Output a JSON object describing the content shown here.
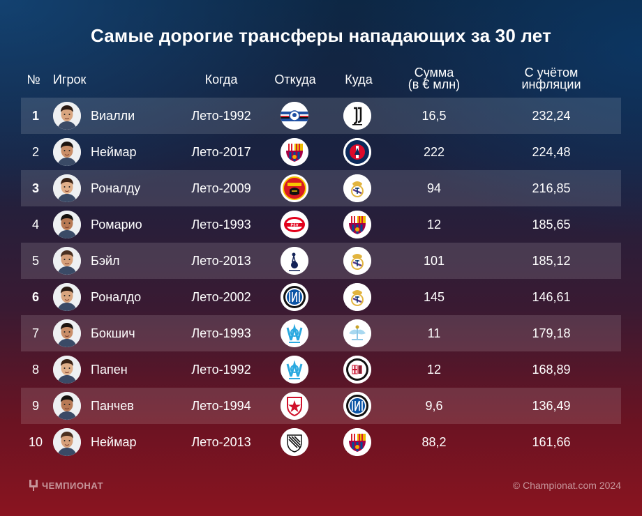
{
  "title": "Самые дорогие трансферы нападающих за 30 лет",
  "headers": {
    "num": "№",
    "player": "Игрок",
    "when": "Когда",
    "from": "Откуда",
    "to": "Куда",
    "sum_line1": "Сумма",
    "sum_line2": "(в € млн)",
    "infl_line1": "С учётом",
    "infl_line2": "инфляции"
  },
  "rows": [
    {
      "num": "1",
      "bold": true,
      "name": "Виалли",
      "when": "Лето-1992",
      "from": "sampdoria-logo",
      "to": "juventus-logo",
      "sum": "16,5",
      "infl": "232,24"
    },
    {
      "num": "2",
      "bold": false,
      "name": "Неймар",
      "when": "Лето-2017",
      "from": "barcelona-logo",
      "to": "psg-logo",
      "sum": "222",
      "infl": "224,48"
    },
    {
      "num": "3",
      "bold": true,
      "name": "Роналду",
      "when": "Лето-2009",
      "from": "manchester-united-logo",
      "to": "real-madrid-logo",
      "sum": "94",
      "infl": "216,85"
    },
    {
      "num": "4",
      "bold": false,
      "name": "Ромарио",
      "when": "Лето-1993",
      "from": "psv-logo",
      "to": "barcelona-logo",
      "sum": "12",
      "infl": "185,65"
    },
    {
      "num": "5",
      "bold": false,
      "name": "Бэйл",
      "when": "Лето-2013",
      "from": "tottenham-logo",
      "to": "real-madrid-logo",
      "sum": "101",
      "infl": "185,12"
    },
    {
      "num": "6",
      "bold": true,
      "name": "Роналдо",
      "when": "Лето-2002",
      "from": "inter-logo",
      "to": "real-madrid-logo",
      "sum": "145",
      "infl": "146,61"
    },
    {
      "num": "7",
      "bold": false,
      "name": "Бокшич",
      "when": "Лето-1993",
      "from": "marseille-logo",
      "to": "lazio-logo",
      "sum": "11",
      "infl": "179,18"
    },
    {
      "num": "8",
      "bold": false,
      "name": "Папен",
      "when": "Лето-1992",
      "from": "marseille-logo",
      "to": "milan-logo",
      "sum": "12",
      "infl": "168,89"
    },
    {
      "num": "9",
      "bold": false,
      "name": "Панчев",
      "when": "Лето-1994",
      "from": "crvena-zvezda-logo",
      "to": "inter-logo",
      "sum": "9,6",
      "infl": "136,49"
    },
    {
      "num": "10",
      "bold": false,
      "name": "Неймар",
      "when": "Лето-2013",
      "from": "santos-logo",
      "to": "barcelona-logo",
      "sum": "88,2",
      "infl": "161,66"
    }
  ],
  "footer": {
    "brand": "ЧЕМПИОНАТ",
    "copyright": "© Championat.com 2024"
  }
}
